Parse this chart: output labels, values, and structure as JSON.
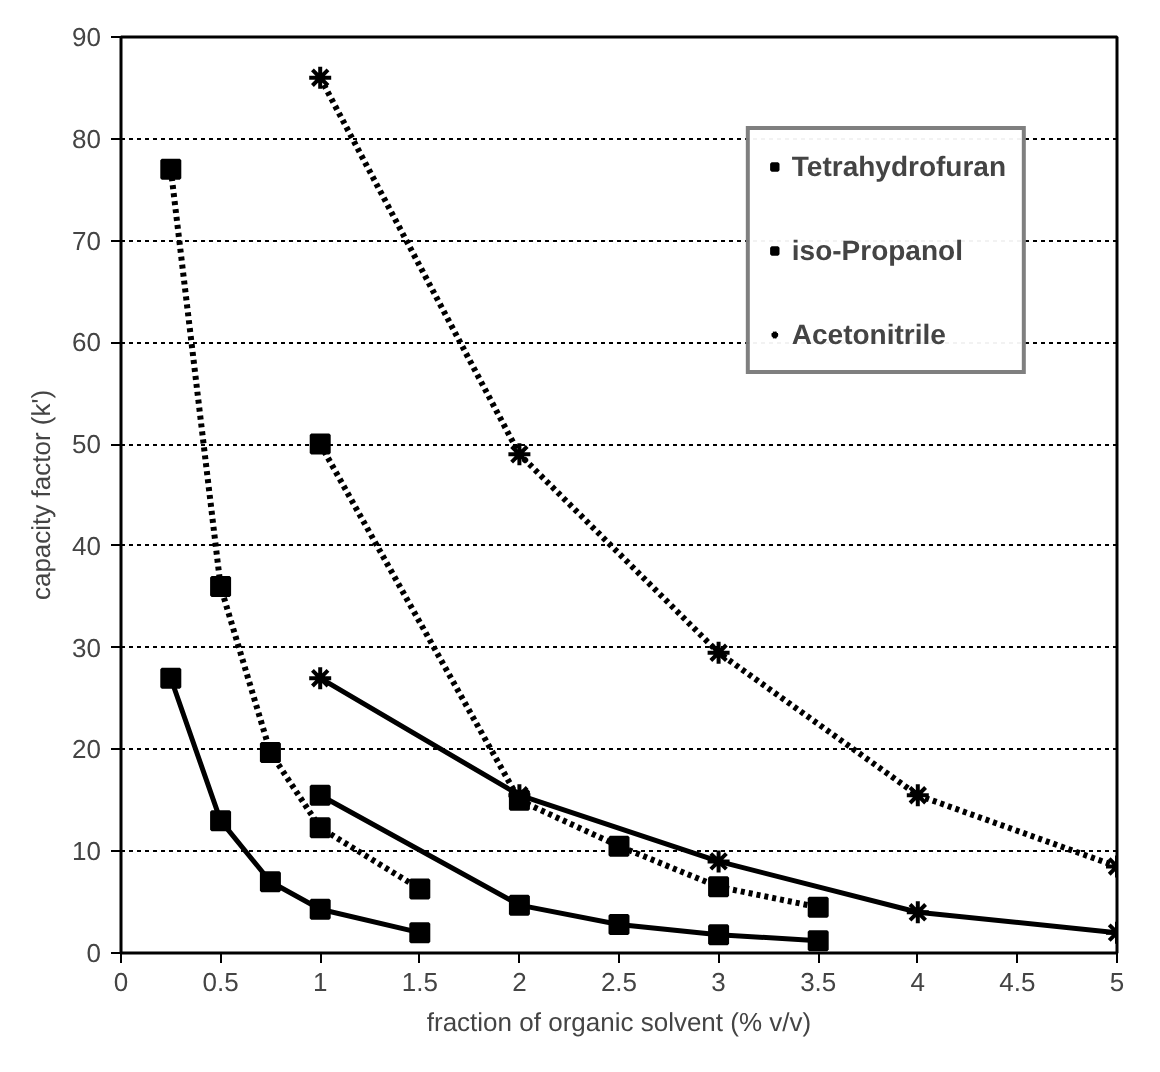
{
  "chart_data": {
    "type": "line",
    "xlabel": "fraction of organic solvent (% v/v)",
    "ylabel": "capacity factor (k')",
    "xlim": [
      0,
      5
    ],
    "xticks": [
      0,
      0.5,
      1,
      1.5,
      2,
      2.5,
      3,
      3.5,
      4,
      4.5,
      5
    ],
    "ylim": [
      0,
      90
    ],
    "yticks": [
      0,
      10,
      20,
      30,
      40,
      50,
      60,
      70,
      80,
      90
    ],
    "grid": "y",
    "legend": "top right",
    "series": [
      {
        "name": "Tetrahydrofuran",
        "color": "#000000",
        "marker": "square",
        "line_style": "solid",
        "x": [
          0.25,
          0.5,
          0.75,
          1,
          1.5
        ],
        "values": [
          27,
          13,
          7,
          4.3,
          2
        ]
      },
      {
        "color": "#000000",
        "marker": "square",
        "line_style": "dotted",
        "x": [
          0.25,
          0.5,
          0.75,
          1,
          1.5
        ],
        "values": [
          77,
          36,
          19.7,
          12.3,
          6.3
        ]
      },
      {
        "name": "iso-Propanol",
        "color": "#000000",
        "marker": "square",
        "line_style": "solid",
        "x": [
          1,
          2,
          2.5,
          3,
          3.5
        ],
        "values": [
          15.5,
          4.7,
          2.8,
          1.8,
          1.2
        ]
      },
      {
        "color": "#000000",
        "marker": "square",
        "line_style": "dotted",
        "x": [
          1,
          2,
          2.5,
          3,
          3.5
        ],
        "values": [
          50,
          15,
          10.5,
          6.5,
          4.5
        ]
      },
      {
        "name": "Acetonitrile",
        "color": "#000000",
        "marker": "cross",
        "line_style": "solid",
        "x": [
          1,
          2,
          3,
          4,
          5
        ],
        "values": [
          27,
          15.5,
          9,
          4,
          2
        ]
      },
      {
        "color": "#000000",
        "marker": "cross",
        "line_style": "dotted",
        "x": [
          1,
          2,
          3,
          4,
          5
        ],
        "values": [
          86,
          49,
          29.5,
          15.5,
          8.5
        ]
      }
    ]
  }
}
